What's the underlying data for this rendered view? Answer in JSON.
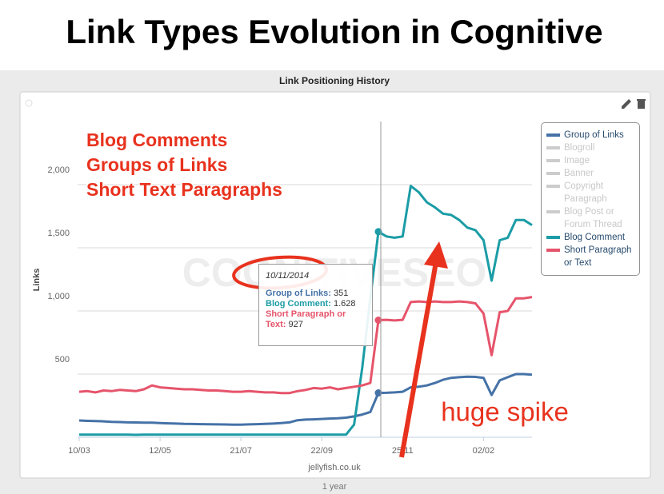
{
  "header": {
    "title": "Link Types Evolution in Cognitive"
  },
  "chart_data": {
    "type": "line",
    "title": "Link Positioning History",
    "y_label": "Links",
    "credit": "jellyfish.co.uk",
    "range_label": "1 year",
    "watermark": "COGNITIVESEO",
    "categories": [
      "10/03",
      null,
      null,
      null,
      null,
      null,
      null,
      null,
      null,
      null,
      "12/05",
      null,
      null,
      null,
      null,
      null,
      null,
      null,
      null,
      null,
      "21/07",
      null,
      null,
      null,
      null,
      null,
      null,
      null,
      null,
      null,
      "22/09",
      null,
      null,
      null,
      null,
      null,
      null,
      null,
      null,
      null,
      "25/11",
      null,
      null,
      null,
      null,
      null,
      null,
      null,
      null,
      null,
      "02/02",
      null,
      null,
      null,
      null,
      null,
      null
    ],
    "ylim": [
      0,
      2500
    ],
    "yticks": [
      {
        "value": 500,
        "label": "500"
      },
      {
        "value": 1000,
        "label": "1,000"
      },
      {
        "value": 1500,
        "label": "1,500"
      },
      {
        "value": 2000,
        "label": "2,000"
      }
    ],
    "grid": true,
    "legend": "right",
    "series": [
      {
        "name": "Group of Links",
        "color": "#4572a7",
        "visible": true,
        "values": [
          133,
          130,
          128,
          126,
          122,
          120,
          118,
          117,
          116,
          115,
          112,
          110,
          108,
          106,
          105,
          104,
          103,
          102,
          101,
          100,
          100,
          102,
          104,
          106,
          108,
          112,
          118,
          135,
          140,
          142,
          145,
          148,
          150,
          155,
          165,
          180,
          200,
          351,
          352,
          355,
          360,
          395,
          400,
          410,
          430,
          455,
          470,
          475,
          480,
          478,
          470,
          335,
          450,
          475,
          500,
          500,
          495
        ]
      },
      {
        "name": "Blogroll",
        "color": "#cccccc",
        "visible": false
      },
      {
        "name": "Image",
        "color": "#cccccc",
        "visible": false
      },
      {
        "name": "Banner",
        "color": "#cccccc",
        "visible": false
      },
      {
        "name": "Copyright Paragraph",
        "color": "#cccccc",
        "visible": false
      },
      {
        "name": "Blog Post or Forum Thread",
        "color": "#cccccc",
        "visible": false
      },
      {
        "name": "Blog Comment",
        "color": "#1b9ca6",
        "visible": true,
        "values": [
          20,
          20,
          20,
          21,
          20,
          20,
          20,
          19,
          20,
          20,
          20,
          20,
          20,
          20,
          20,
          20,
          20,
          20,
          20,
          20,
          20,
          20,
          20,
          20,
          20,
          20,
          20,
          20,
          20,
          20,
          20,
          20,
          20,
          20,
          100,
          550,
          1100,
          1628,
          1590,
          1580,
          1590,
          1990,
          1940,
          1860,
          1820,
          1770,
          1760,
          1720,
          1660,
          1640,
          1560,
          1240,
          1560,
          1580,
          1720,
          1720,
          1680
        ]
      },
      {
        "name": "Short Paragraph or Text",
        "color": "#e6546b",
        "visible": true,
        "values": [
          360,
          365,
          355,
          370,
          365,
          375,
          370,
          365,
          380,
          410,
          395,
          390,
          385,
          380,
          380,
          375,
          370,
          370,
          365,
          360,
          360,
          365,
          360,
          355,
          355,
          350,
          350,
          365,
          375,
          390,
          385,
          395,
          380,
          390,
          400,
          410,
          430,
          927,
          930,
          925,
          930,
          1070,
          1075,
          1070,
          1075,
          1070,
          1070,
          1075,
          1070,
          1060,
          980,
          650,
          990,
          1000,
          1100,
          1100,
          1110
        ]
      }
    ],
    "tooltip": {
      "date": "10/11/2014",
      "index": 37,
      "labels": [
        "Group of Links:",
        "Blog Comment:",
        "Short Paragraph or Text:"
      ],
      "series": [
        0,
        6,
        7
      ],
      "values": [
        351,
        1628,
        927
      ],
      "value_labels": [
        "351",
        "1.628",
        "927"
      ]
    },
    "annotations": {
      "headline": [
        "Blog Comments",
        "Groups of Links",
        "Short Text Paragraphs"
      ],
      "arrow_text": "huge spike"
    }
  }
}
